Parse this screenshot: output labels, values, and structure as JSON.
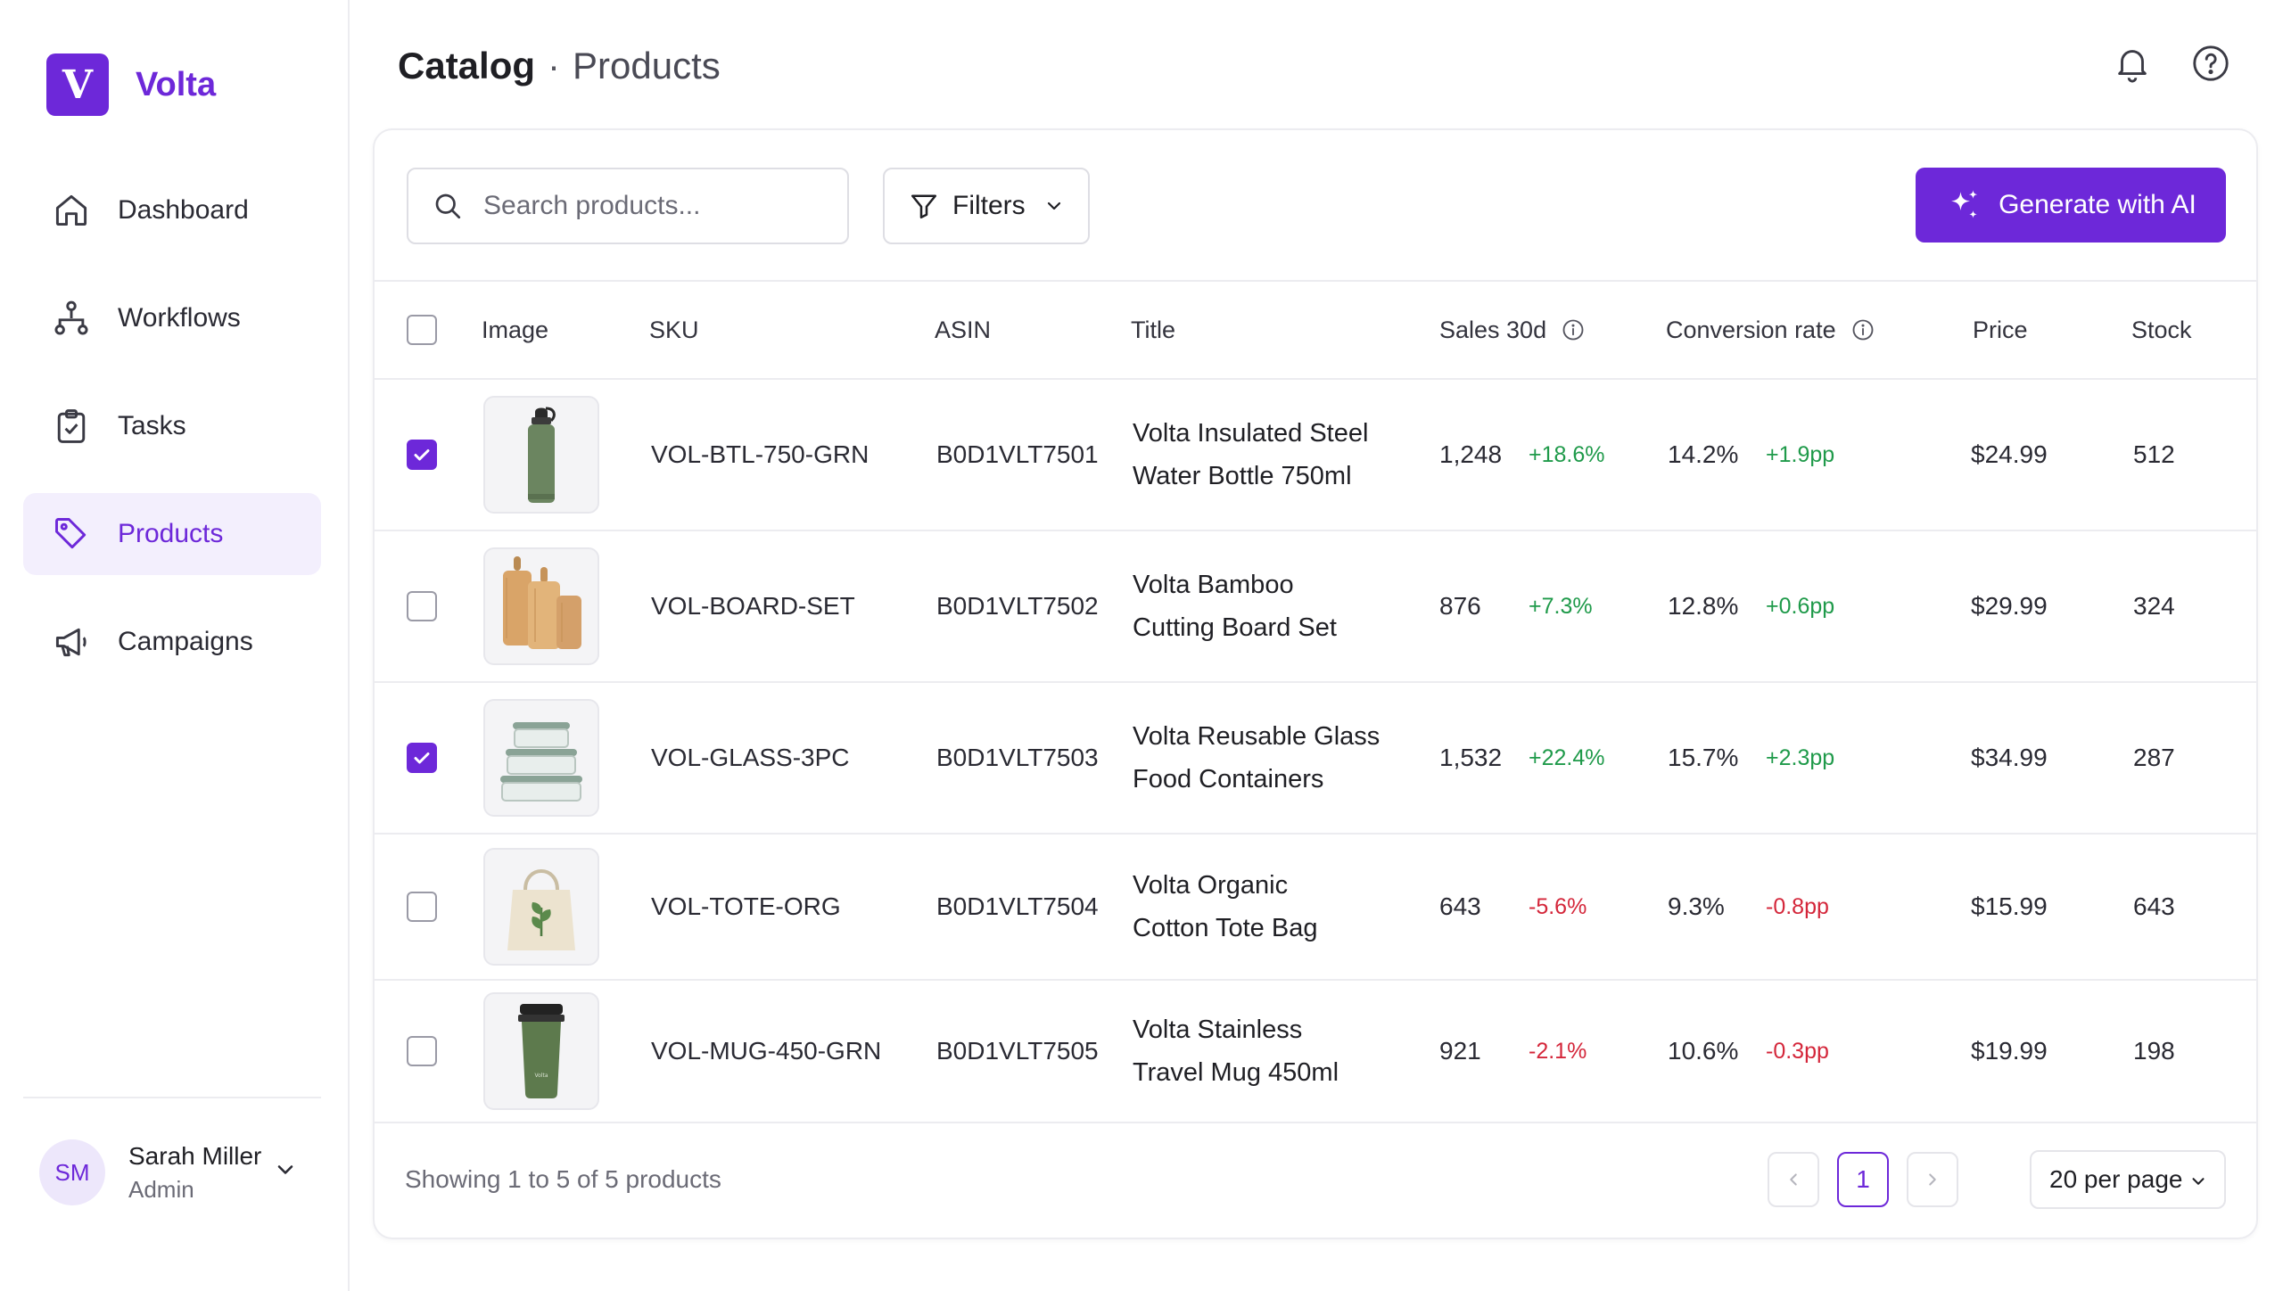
{
  "brand": {
    "logo_letter": "V",
    "name": "Volta"
  },
  "sidebar": {
    "items": [
      {
        "label": "Dashboard",
        "icon": "home-icon",
        "active": false
      },
      {
        "label": "Workflows",
        "icon": "workflow-icon",
        "active": false
      },
      {
        "label": "Tasks",
        "icon": "clipboard-check-icon",
        "active": false
      },
      {
        "label": "Products",
        "icon": "tag-icon",
        "active": true
      },
      {
        "label": "Campaigns",
        "icon": "megaphone-icon",
        "active": false
      }
    ],
    "user": {
      "initials": "SM",
      "name": "Sarah Miller",
      "role": "Admin"
    }
  },
  "header": {
    "breadcrumb_root": "Catalog",
    "separator": "·",
    "breadcrumb_current": "Products",
    "icons": [
      "bell-icon",
      "help-icon"
    ]
  },
  "toolbar": {
    "search_placeholder": "Search products...",
    "filters_label": "Filters",
    "generate_label": "Generate with AI"
  },
  "table": {
    "columns": {
      "image": "Image",
      "sku": "SKU",
      "asin": "ASIN",
      "title": "Title",
      "sales": "Sales 30d",
      "conversion": "Conversion rate",
      "price": "Price",
      "stock": "Stock"
    },
    "rows": [
      {
        "checked": true,
        "image": "water-bottle-image",
        "sku": "VOL-BTL-750-GRN",
        "asin": "B0D1VLT7501",
        "title_line1": "Volta Insulated Steel",
        "title_line2": "Water Bottle 750ml",
        "sales": "1,248",
        "sales_delta": "+18.6%",
        "sales_trend": "up",
        "conversion": "14.2%",
        "conversion_delta": "+1.9pp",
        "conversion_trend": "up",
        "price": "$24.99",
        "stock": "512"
      },
      {
        "checked": false,
        "image": "cutting-board-image",
        "sku": "VOL-BOARD-SET",
        "asin": "B0D1VLT7502",
        "title_line1": "Volta Bamboo",
        "title_line2": "Cutting Board Set",
        "sales": "876",
        "sales_delta": "+7.3%",
        "sales_trend": "up",
        "conversion": "12.8%",
        "conversion_delta": "+0.6pp",
        "conversion_trend": "up",
        "price": "$29.99",
        "stock": "324"
      },
      {
        "checked": true,
        "image": "glass-containers-image",
        "sku": "VOL-GLASS-3PC",
        "asin": "B0D1VLT7503",
        "title_line1": "Volta Reusable Glass",
        "title_line2": "Food Containers",
        "sales": "1,532",
        "sales_delta": "+22.4%",
        "sales_trend": "up",
        "conversion": "15.7%",
        "conversion_delta": "+2.3pp",
        "conversion_trend": "up",
        "price": "$34.99",
        "stock": "287"
      },
      {
        "checked": false,
        "image": "tote-bag-image",
        "sku": "VOL-TOTE-ORG",
        "asin": "B0D1VLT7504",
        "title_line1": "Volta Organic",
        "title_line2": "Cotton Tote Bag",
        "sales": "643",
        "sales_delta": "-5.6%",
        "sales_trend": "down",
        "conversion": "9.3%",
        "conversion_delta": "-0.8pp",
        "conversion_trend": "down",
        "price": "$15.99",
        "stock": "643"
      },
      {
        "checked": false,
        "image": "travel-mug-image",
        "sku": "VOL-MUG-450-GRN",
        "asin": "B0D1VLT7505",
        "title_line1": "Volta Stainless",
        "title_line2": "Travel Mug 450ml",
        "sales": "921",
        "sales_delta": "-2.1%",
        "sales_trend": "down",
        "conversion": "10.6%",
        "conversion_delta": "-0.3pp",
        "conversion_trend": "down",
        "price": "$19.99",
        "stock": "198"
      }
    ]
  },
  "footer": {
    "showing_text": "Showing 1 to 5 of 5 products",
    "current_page": "1",
    "per_page_label": "20 per page"
  },
  "colors": {
    "accent": "#6d28d9",
    "positive": "#1f9a4a",
    "negative": "#d4263a",
    "active_bg": "#f3effd"
  }
}
